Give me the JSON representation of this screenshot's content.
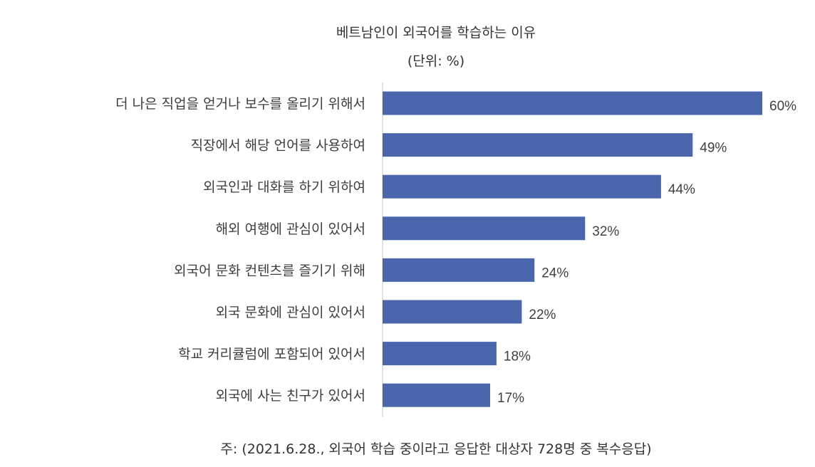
{
  "chart_data": {
    "type": "bar",
    "orientation": "horizontal",
    "title": "베트남인이 외국어를 학습하는 이유",
    "subtitle": "(단위: %)",
    "categories": [
      "더 나은 직업을 얻거나 보수를 올리기 위해서",
      "직장에서 해당 언어를 사용하여",
      "외국인과 대화를 하기 위하여",
      "해외 여행에 관심이 있어서",
      "외국어 문화 컨텐츠를 즐기기 위해",
      "외국 문화에 관심이 있어서",
      "학교 커리큘럼에 포함되어 있어서",
      "외국에 사는 친구가 있어서"
    ],
    "values": [
      60,
      49,
      44,
      32,
      24,
      22,
      18,
      17
    ],
    "value_labels": [
      "60%",
      "49%",
      "44%",
      "32%",
      "24%",
      "22%",
      "18%",
      "17%"
    ],
    "xlim": [
      0,
      60
    ],
    "grid": false,
    "legend": "none",
    "note": "주: (2021.6.28., 외국어 학습 중이라고 응답한 대상자 728명 중 복수응답)"
  },
  "colors": {
    "bar": "#4a67ae",
    "axis": "#d9d9d9"
  }
}
